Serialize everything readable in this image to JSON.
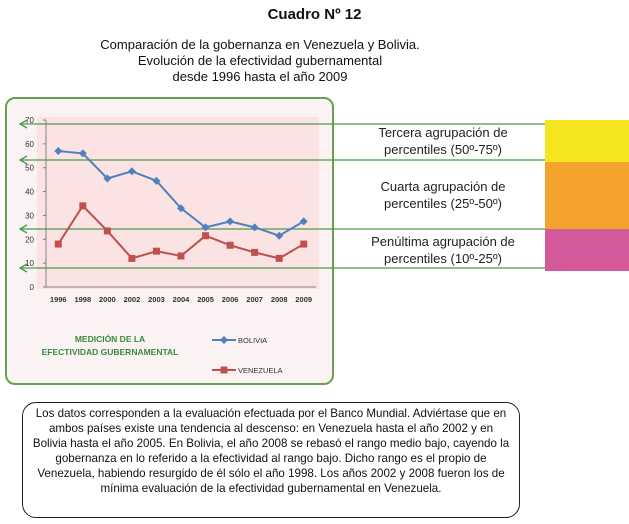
{
  "header": {
    "title": "Cuadro Nº 12",
    "subtitle_line1": "Comparación de la gobernanza en Venezuela y Bolivia.",
    "subtitle_line2": "Evolución de la efectividad gubernamental",
    "subtitle_line3": "desde 1996 hasta el año 2009"
  },
  "chart_data": {
    "type": "line",
    "title": "MEDICIÓN DE LA EFECTIVIDAD GUBERNAMENTAL",
    "title_line1": "MEDICIÓN DE LA",
    "title_line2": "EFECTIVIDAD GUBERNAMENTAL",
    "categories": [
      "1996",
      "1998",
      "2000",
      "2002",
      "2003",
      "2004",
      "2005",
      "2006",
      "2007",
      "2008",
      "2009"
    ],
    "series": [
      {
        "name": "BOLIVIA",
        "color": "#4f81bd",
        "marker": "diamond",
        "values": [
          57,
          56,
          45.5,
          48.5,
          44.5,
          33,
          25,
          27.5,
          25,
          21.5,
          27.5
        ]
      },
      {
        "name": "VENEZUELA",
        "color": "#c0504d",
        "marker": "square",
        "values": [
          18,
          34,
          23.5,
          12,
          15,
          13,
          21.5,
          17.5,
          14.5,
          12,
          18
        ]
      }
    ],
    "ylim": [
      0,
      70
    ],
    "yticks": [
      "0",
      "10",
      "20",
      "30",
      "40",
      "50",
      "60",
      "70"
    ],
    "reference_lines": [
      75,
      50,
      25,
      10
    ],
    "grid": false,
    "legend_position": "bottom-right"
  },
  "bands": [
    {
      "label_line1": "Tercera agrupación de",
      "label_line2": "percentiles (50º-75º)",
      "color": "#f5e521"
    },
    {
      "label_line1": "Cuarta agrupación de",
      "label_line2": "percentiles (25º-50º)",
      "color": "#f4a32c"
    },
    {
      "label_line1": "Penúltima agrupación de",
      "label_line2": "percentiles (10º-25º)",
      "color": "#d4599b"
    }
  ],
  "colors": {
    "guide_line": "#4a9a4a",
    "chart_border": "#6aa04f",
    "chart_title": "#3a8a3a"
  },
  "note": {
    "text": "Los datos corresponden a la evaluación efectuada por el Banco Mundial. Adviértase que en ambos países existe una tendencia al descenso: en Venezuela hasta el año 2002 y en Bolivia hasta el año 2005. En Bolivia, el año 2008 se rebasó el rango medio bajo, cayendo la gobernanza en lo referido a la efectividad al rango bajo. Dicho rango es el propio de Venezuela, habiendo resurgido de él sólo el año 1998. Los años 2002 y 2008 fueron los de mínima evaluación de la efectividad gubernamental en Venezuela."
  }
}
